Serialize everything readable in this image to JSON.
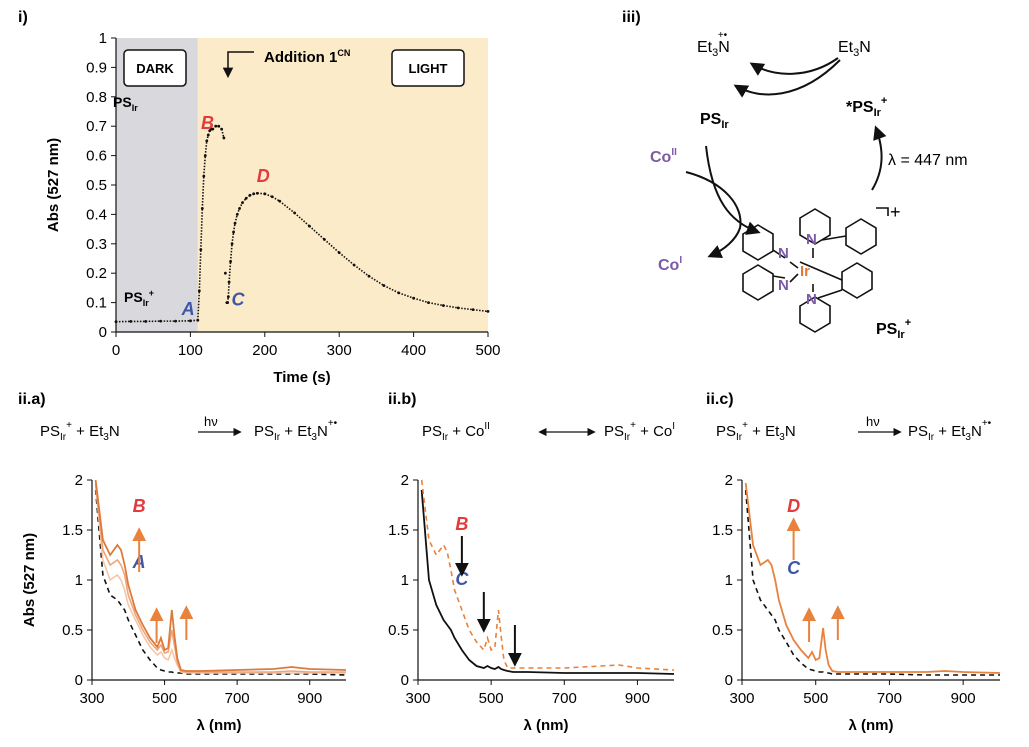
{
  "colors": {
    "dark_region": "#d9d9dd",
    "light_region": "#fcebc8",
    "orange": "#e8823c",
    "red_label": "#e23b3b",
    "blue_label": "#3f56a8",
    "purple": "#7b5aa6",
    "iridium": "#e07a3a",
    "black": "#111111"
  },
  "panel_i": {
    "label": "i)",
    "dark_box": "DARK",
    "light_box": "LIGHT",
    "addition_label": "Addition 1",
    "addition_sup": "CN",
    "ps_ir_top": {
      "main": "PS",
      "sub": "Ir"
    },
    "ps_ir_plus_bottom": {
      "main": "PS",
      "sub": "Ir",
      "sup": "+"
    },
    "point_labels": [
      "A",
      "B",
      "C",
      "D"
    ]
  },
  "panel_iii": {
    "label": "iii)",
    "et3n_radical": {
      "main": "Et",
      "sub": "3",
      "tail": "N",
      "sup": "+•"
    },
    "et3n": {
      "main": "Et",
      "sub": "3",
      "tail": "N"
    },
    "ps_ir": {
      "main": "PS",
      "sub": "Ir"
    },
    "excited_ps_ir_plus": {
      "main": "*PS",
      "sub": "Ir",
      "sup": "+"
    },
    "co_ii": {
      "main": "Co",
      "sup": "II"
    },
    "co_i": {
      "main": "Co",
      "sup": "I"
    },
    "wavelength": "λ = 447 nm",
    "complex_charge": "+",
    "complex_label": {
      "main": "PS",
      "sub": "Ir",
      "sup": "+"
    },
    "atoms": {
      "ir": "Ir",
      "n": "N"
    }
  },
  "panel_ii": {
    "a": {
      "label": "ii.a)",
      "eq_hv": "hν"
    },
    "b": {
      "label": "ii.b)"
    },
    "c": {
      "label": "ii.c)",
      "eq_hv": "hν"
    }
  },
  "chart_data": [
    {
      "type": "scatter",
      "panel": "i)",
      "xlabel": "Time (s)",
      "ylabel": "Abs (527 nm)",
      "xlim": [
        0,
        500
      ],
      "ylim": [
        0,
        1
      ],
      "xticks": [
        0,
        100,
        200,
        300,
        400,
        500
      ],
      "yticks": [
        0,
        0.1,
        0.2,
        0.3,
        0.4,
        0.5,
        0.6,
        0.7,
        0.8,
        0.9,
        1
      ],
      "ytick_labels": [
        "0",
        "0.1",
        "0.2",
        "0.3",
        "0.4",
        "0.5",
        "0.6",
        "0.7",
        "0.8",
        "0.9",
        "1"
      ],
      "regions": [
        {
          "name": "DARK",
          "x": [
            0,
            110
          ]
        },
        {
          "name": "LIGHT",
          "x": [
            110,
            500
          ]
        }
      ],
      "series": [
        {
          "x": [
            0,
            20,
            40,
            60,
            80,
            100,
            110,
            112,
            114,
            116,
            118,
            120,
            122,
            124,
            126,
            128,
            130,
            134,
            138,
            142,
            145,
            147,
            149,
            150,
            151,
            152,
            154,
            156,
            158,
            160,
            163,
            166,
            170,
            175,
            180,
            185,
            190,
            200,
            210,
            220,
            240,
            260,
            280,
            300,
            320,
            340,
            360,
            380,
            400,
            420,
            440,
            460,
            480,
            500
          ],
          "y": [
            0.035,
            0.036,
            0.036,
            0.037,
            0.037,
            0.038,
            0.04,
            0.14,
            0.28,
            0.42,
            0.53,
            0.6,
            0.65,
            0.67,
            0.685,
            0.69,
            0.69,
            0.7,
            0.7,
            0.69,
            0.66,
            0.2,
            0.1,
            0.1,
            0.12,
            0.17,
            0.24,
            0.3,
            0.34,
            0.37,
            0.4,
            0.42,
            0.44,
            0.455,
            0.465,
            0.47,
            0.472,
            0.47,
            0.46,
            0.445,
            0.405,
            0.36,
            0.315,
            0.27,
            0.228,
            0.19,
            0.158,
            0.133,
            0.115,
            0.1,
            0.09,
            0.082,
            0.076,
            0.07
          ]
        }
      ],
      "annotations": [
        {
          "text": "A",
          "x": 97,
          "y": 0.058
        },
        {
          "text": "B",
          "x": 123,
          "y": 0.69
        },
        {
          "text": "C",
          "x": 164,
          "y": 0.09
        },
        {
          "text": "D",
          "x": 198,
          "y": 0.51
        }
      ]
    },
    {
      "type": "line",
      "panel": "ii.a)",
      "xlabel": "λ (nm)",
      "ylabel": "Abs (527 nm)",
      "xlim": [
        300,
        1000
      ],
      "ylim": [
        0,
        2
      ],
      "xticks": [
        300,
        500,
        700,
        900
      ],
      "yticks": [
        0,
        0.5,
        1,
        1.5,
        2
      ],
      "ytick_labels": [
        "0",
        "0.5",
        "1",
        "1.5",
        "2"
      ],
      "x": [
        310,
        330,
        350,
        370,
        380,
        390,
        400,
        420,
        440,
        460,
        480,
        490,
        500,
        510,
        520,
        527,
        535,
        545,
        560,
        600,
        700,
        800,
        850,
        900,
        1000
      ],
      "series": [
        {
          "style": "black-dashed",
          "values": [
            1.9,
            1.05,
            0.85,
            0.8,
            0.75,
            0.7,
            0.6,
            0.45,
            0.3,
            0.2,
            0.12,
            0.1,
            0.09,
            0.08,
            0.08,
            0.07,
            0.07,
            0.07,
            0.06,
            0.06,
            0.06,
            0.06,
            0.06,
            0.06,
            0.05
          ]
        },
        {
          "style": "orange-light",
          "values": [
            1.95,
            1.2,
            1.0,
            1.05,
            1.0,
            0.9,
            0.75,
            0.6,
            0.45,
            0.33,
            0.25,
            0.28,
            0.22,
            0.2,
            0.3,
            0.22,
            0.15,
            0.08,
            0.07,
            0.07,
            0.07,
            0.07,
            0.07,
            0.07,
            0.07
          ]
        },
        {
          "style": "orange-mid",
          "values": [
            1.97,
            1.3,
            1.15,
            1.2,
            1.15,
            1.05,
            0.85,
            0.65,
            0.5,
            0.38,
            0.3,
            0.35,
            0.27,
            0.28,
            0.5,
            0.35,
            0.18,
            0.09,
            0.08,
            0.08,
            0.08,
            0.08,
            0.09,
            0.08,
            0.08
          ]
        },
        {
          "style": "orange-dark",
          "values": [
            2.0,
            1.4,
            1.25,
            1.35,
            1.3,
            1.15,
            0.95,
            0.7,
            0.55,
            0.42,
            0.33,
            0.42,
            0.3,
            0.32,
            0.7,
            0.45,
            0.22,
            0.1,
            0.09,
            0.09,
            0.1,
            0.11,
            0.13,
            0.11,
            0.1
          ]
        }
      ],
      "annotations": [
        {
          "text": "B",
          "x": 430,
          "y": 1.68
        },
        {
          "text": "A",
          "x": 430,
          "y": 1.12
        }
      ]
    },
    {
      "type": "line",
      "panel": "ii.b)",
      "xlabel": "λ (nm)",
      "ylabel": "",
      "xlim": [
        300,
        1000
      ],
      "ylim": [
        0,
        2
      ],
      "xticks": [
        300,
        500,
        700,
        900
      ],
      "yticks": [
        0,
        0.5,
        1,
        1.5,
        2
      ],
      "ytick_labels": [
        "0",
        "0.5",
        "1",
        "1.5",
        "2"
      ],
      "x": [
        310,
        330,
        350,
        370,
        380,
        390,
        400,
        420,
        440,
        460,
        480,
        490,
        500,
        510,
        520,
        527,
        535,
        545,
        560,
        600,
        700,
        800,
        850,
        900,
        1000
      ],
      "series": [
        {
          "style": "black-solid",
          "values": [
            1.9,
            1.0,
            0.75,
            0.6,
            0.55,
            0.5,
            0.42,
            0.3,
            0.2,
            0.14,
            0.12,
            0.14,
            0.12,
            0.11,
            0.13,
            0.11,
            0.1,
            0.09,
            0.08,
            0.08,
            0.07,
            0.07,
            0.07,
            0.07,
            0.06
          ]
        },
        {
          "style": "orange-dashed",
          "values": [
            2.0,
            1.4,
            1.25,
            1.35,
            1.28,
            1.1,
            0.9,
            0.7,
            0.5,
            0.38,
            0.3,
            0.42,
            0.3,
            0.32,
            0.7,
            0.45,
            0.2,
            0.12,
            0.12,
            0.12,
            0.12,
            0.14,
            0.15,
            0.12,
            0.1
          ]
        }
      ],
      "annotations": [
        {
          "text": "B",
          "x": 420,
          "y": 1.5
        },
        {
          "text": "C",
          "x": 420,
          "y": 0.95
        }
      ]
    },
    {
      "type": "line",
      "panel": "ii.c)",
      "xlabel": "λ (nm)",
      "ylabel": "",
      "xlim": [
        300,
        1000
      ],
      "ylim": [
        0,
        2
      ],
      "xticks": [
        300,
        500,
        700,
        900
      ],
      "yticks": [
        0,
        0.5,
        1,
        1.5,
        2
      ],
      "ytick_labels": [
        "0",
        "0.5",
        "1",
        "1.5",
        "2"
      ],
      "x": [
        310,
        330,
        350,
        370,
        380,
        390,
        400,
        420,
        440,
        460,
        480,
        490,
        500,
        510,
        520,
        527,
        535,
        545,
        560,
        600,
        700,
        800,
        850,
        900,
        1000
      ],
      "series": [
        {
          "style": "black-dashed",
          "values": [
            1.9,
            1.0,
            0.8,
            0.7,
            0.65,
            0.6,
            0.5,
            0.38,
            0.25,
            0.17,
            0.11,
            0.1,
            0.09,
            0.08,
            0.08,
            0.07,
            0.07,
            0.06,
            0.06,
            0.06,
            0.06,
            0.05,
            0.05,
            0.05,
            0.05
          ]
        },
        {
          "style": "orange-solid",
          "values": [
            1.97,
            1.35,
            1.15,
            1.2,
            1.15,
            1.0,
            0.8,
            0.55,
            0.4,
            0.3,
            0.22,
            0.28,
            0.2,
            0.22,
            0.52,
            0.3,
            0.15,
            0.09,
            0.08,
            0.08,
            0.08,
            0.08,
            0.09,
            0.08,
            0.07
          ]
        }
      ],
      "annotations": [
        {
          "text": "D",
          "x": 440,
          "y": 1.68
        },
        {
          "text": "C",
          "x": 440,
          "y": 1.06
        }
      ]
    }
  ]
}
